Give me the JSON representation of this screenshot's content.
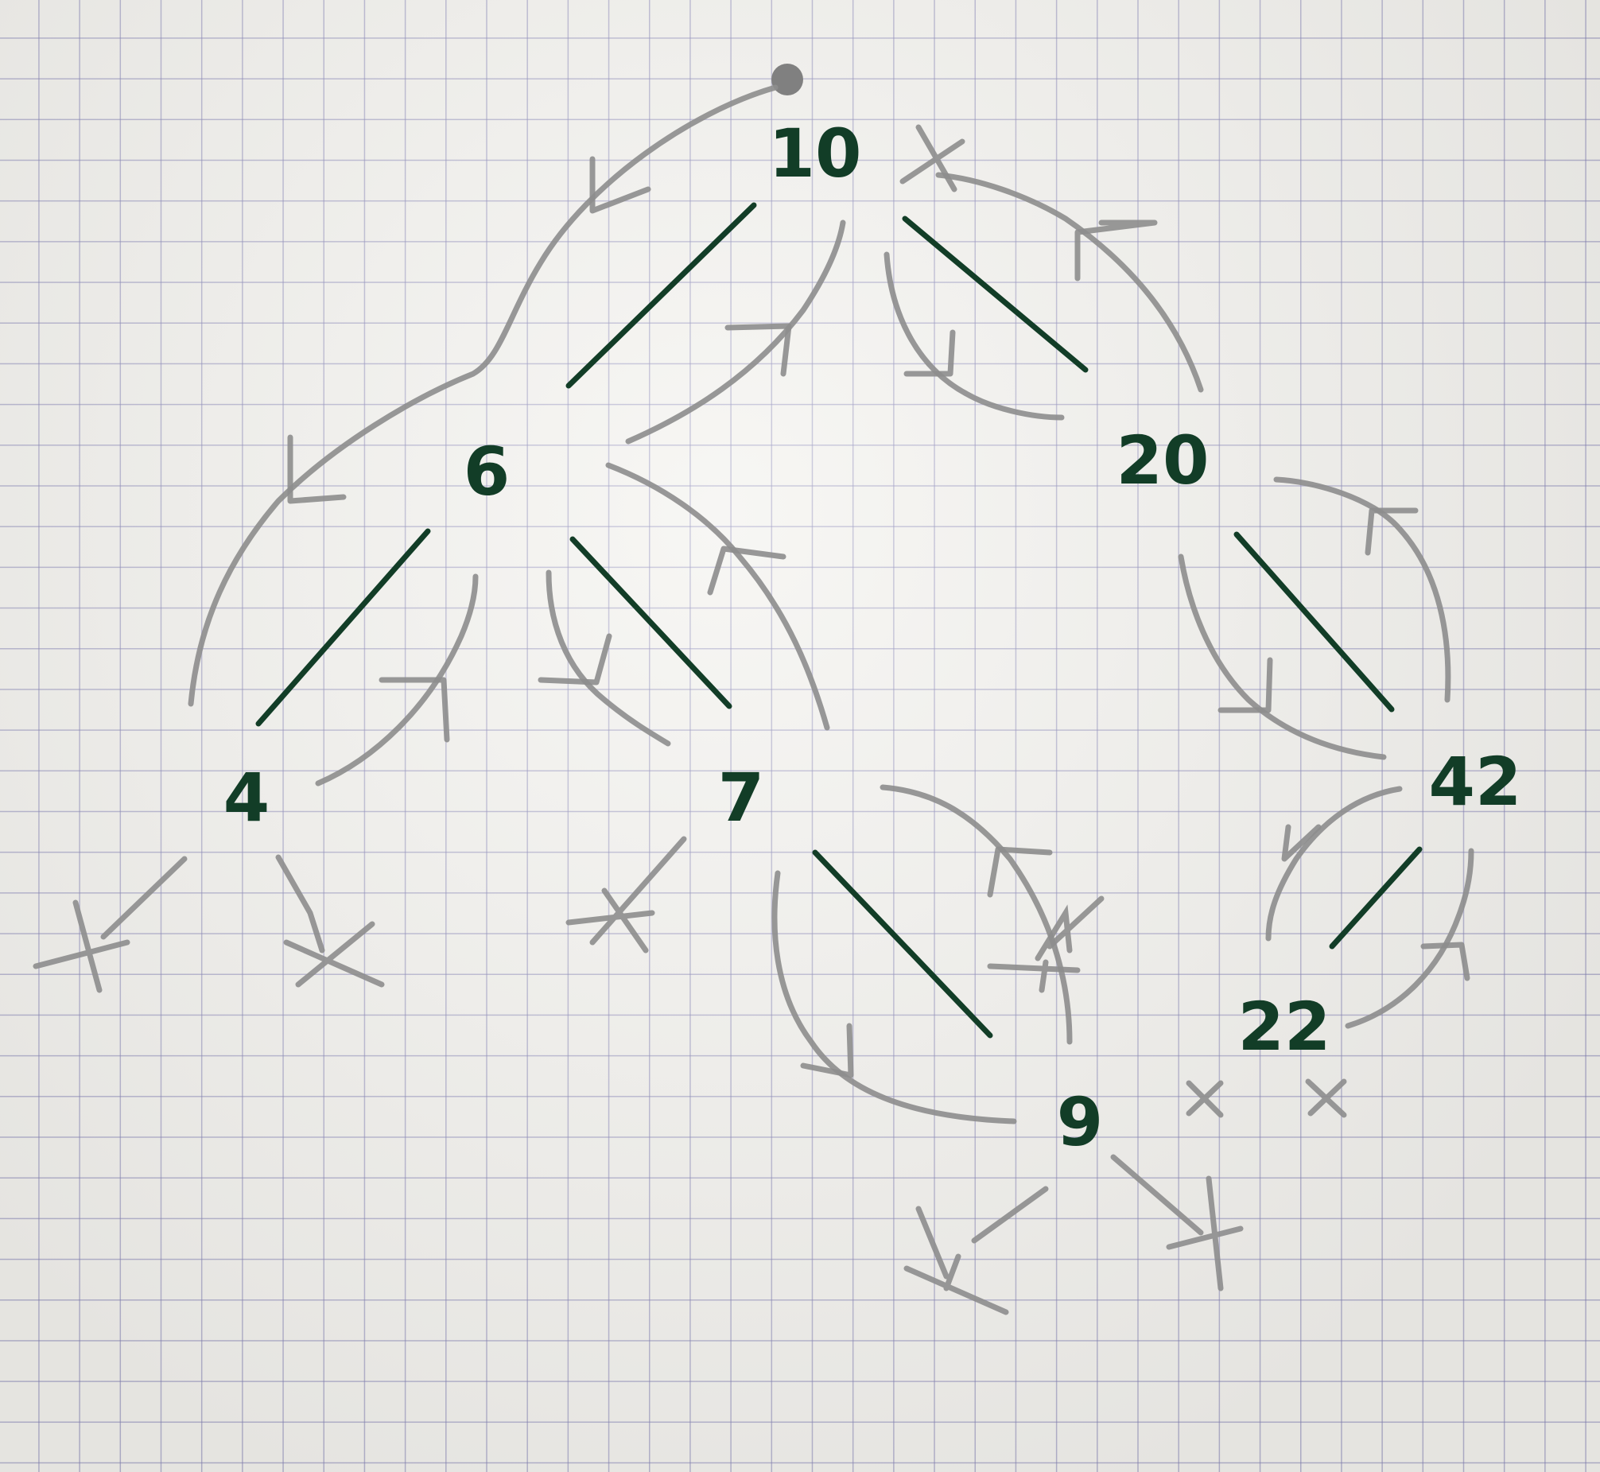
{
  "diagram": {
    "type": "binary-search-tree-traversal",
    "nodes": [
      {
        "id": "n10",
        "label": "10"
      },
      {
        "id": "n6",
        "label": "6"
      },
      {
        "id": "n20",
        "label": "20"
      },
      {
        "id": "n4",
        "label": "4"
      },
      {
        "id": "n7",
        "label": "7"
      },
      {
        "id": "n42",
        "label": "42"
      },
      {
        "id": "n9",
        "label": "9"
      },
      {
        "id": "n22",
        "label": "22"
      }
    ],
    "edges": [
      {
        "from": "10",
        "to": "6"
      },
      {
        "from": "10",
        "to": "20"
      },
      {
        "from": "6",
        "to": "4"
      },
      {
        "from": "6",
        "to": "7"
      },
      {
        "from": "20",
        "to": "42"
      },
      {
        "from": "7",
        "to": "9"
      },
      {
        "from": "42",
        "to": "22"
      }
    ],
    "null_children": [
      "10 right-marker",
      "4 left",
      "4 right",
      "7 left",
      "20 left",
      "22 left",
      "22 right",
      "9 left",
      "9 right"
    ],
    "colors": {
      "ink": "#123d27",
      "pencil": "#8d8d8d",
      "paper": "#f3f2ee",
      "grid": "#8280b4"
    }
  }
}
